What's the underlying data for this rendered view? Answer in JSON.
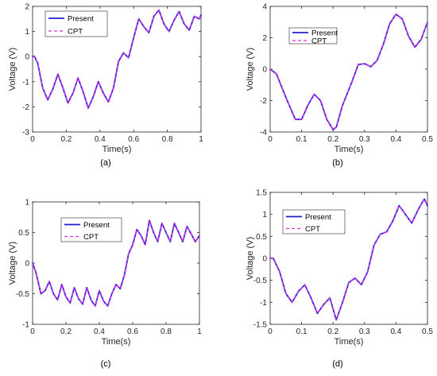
{
  "colors": {
    "present": "#1f1fd0",
    "cpt": "#e22ee2"
  },
  "chart_data": [
    {
      "type": "line",
      "panel_label": "(a)",
      "xlabel": "Time(s)",
      "ylabel": "Voltage (V)",
      "xlim": [
        0,
        1
      ],
      "ylim": [
        -3,
        2
      ],
      "xticks": [
        0,
        0.2,
        0.4,
        0.6,
        0.8,
        1
      ],
      "yticks": [
        -3,
        -2,
        -1,
        0,
        1,
        2
      ],
      "xtick_labels": [
        "0",
        "0.2",
        "0.4",
        "0.6",
        "0.8",
        "1"
      ],
      "ytick_labels": [
        "-3",
        "-2",
        "-1",
        "0",
        "1",
        "2"
      ],
      "grid": false,
      "legend": "top-left",
      "x": [
        0,
        0.01,
        0.03,
        0.06,
        0.09,
        0.12,
        0.15,
        0.18,
        0.21,
        0.24,
        0.27,
        0.3,
        0.33,
        0.36,
        0.39,
        0.42,
        0.45,
        0.48,
        0.51,
        0.54,
        0.57,
        0.6,
        0.63,
        0.66,
        0.69,
        0.72,
        0.75,
        0.78,
        0.81,
        0.84,
        0.87,
        0.9,
        0.93,
        0.96,
        0.99,
        1.0
      ],
      "series": [
        {
          "name": "Present",
          "values": [
            0,
            0.02,
            -0.25,
            -1.25,
            -1.72,
            -1.3,
            -0.7,
            -1.25,
            -1.85,
            -1.45,
            -0.85,
            -1.4,
            -2.05,
            -1.6,
            -1.0,
            -1.45,
            -1.8,
            -1.25,
            -0.2,
            0.15,
            -0.05,
            0.75,
            1.5,
            1.2,
            0.95,
            1.6,
            1.85,
            1.3,
            1.0,
            1.45,
            1.8,
            1.3,
            1.05,
            1.6,
            1.5,
            1.65
          ]
        },
        {
          "name": "CPT",
          "values": [
            0,
            0.02,
            -0.25,
            -1.25,
            -1.72,
            -1.3,
            -0.7,
            -1.25,
            -1.85,
            -1.45,
            -0.85,
            -1.4,
            -2.05,
            -1.6,
            -1.0,
            -1.45,
            -1.8,
            -1.25,
            -0.2,
            0.15,
            -0.05,
            0.75,
            1.5,
            1.2,
            0.95,
            1.6,
            1.85,
            1.3,
            1.0,
            1.45,
            1.8,
            1.3,
            1.05,
            1.6,
            1.5,
            1.65
          ]
        }
      ]
    },
    {
      "type": "line",
      "panel_label": "(b)",
      "xlabel": "Time(s)",
      "ylabel": "Voltage (V)",
      "xlim": [
        0,
        0.5
      ],
      "ylim": [
        -4,
        4
      ],
      "xticks": [
        0,
        0.1,
        0.2,
        0.3,
        0.4,
        0.5
      ],
      "yticks": [
        -4,
        -2,
        0,
        2,
        4
      ],
      "xtick_labels": [
        "0",
        "0.1",
        "0.2",
        "0.3",
        "0.4",
        "0.5"
      ],
      "ytick_labels": [
        "-4",
        "-2",
        "0",
        "2",
        "4"
      ],
      "grid": false,
      "legend": "top-left",
      "x": [
        0,
        0.02,
        0.05,
        0.08,
        0.1,
        0.12,
        0.14,
        0.16,
        0.18,
        0.2,
        0.21,
        0.23,
        0.26,
        0.28,
        0.3,
        0.32,
        0.34,
        0.36,
        0.38,
        0.4,
        0.42,
        0.44,
        0.46,
        0.48,
        0.5
      ],
      "series": [
        {
          "name": "Present",
          "values": [
            0,
            -0.3,
            -1.8,
            -3.2,
            -3.2,
            -2.3,
            -1.6,
            -2.0,
            -3.2,
            -3.85,
            -3.7,
            -2.3,
            -0.8,
            0.3,
            0.35,
            0.15,
            0.55,
            1.6,
            2.9,
            3.5,
            3.2,
            2.1,
            1.4,
            1.9,
            3.0
          ]
        },
        {
          "name": "CPT",
          "values": [
            0,
            -0.3,
            -1.8,
            -3.2,
            -3.2,
            -2.3,
            -1.6,
            -2.0,
            -3.2,
            -3.85,
            -3.7,
            -2.3,
            -0.8,
            0.3,
            0.35,
            0.15,
            0.55,
            1.6,
            2.9,
            3.5,
            3.2,
            2.1,
            1.4,
            1.9,
            3.0
          ]
        }
      ]
    },
    {
      "type": "line",
      "panel_label": "(c)",
      "xlabel": "Time(s)",
      "ylabel": "Voltage (V)",
      "xlim": [
        0,
        1
      ],
      "ylim": [
        -1,
        1
      ],
      "xticks": [
        0,
        0.2,
        0.4,
        0.6,
        0.8,
        1
      ],
      "yticks": [
        -1,
        -0.5,
        0,
        0.5,
        1
      ],
      "xtick_labels": [
        "0",
        "0.2",
        "0.4",
        "0.6",
        "0.8",
        "1"
      ],
      "ytick_labels": [
        "-1",
        "-0.5",
        "0",
        "0.5",
        "1"
      ],
      "grid": false,
      "legend": "top-right",
      "x": [
        0,
        0.02,
        0.05,
        0.075,
        0.1,
        0.125,
        0.15,
        0.175,
        0.2,
        0.225,
        0.25,
        0.275,
        0.3,
        0.325,
        0.35,
        0.375,
        0.4,
        0.425,
        0.45,
        0.475,
        0.5,
        0.525,
        0.55,
        0.575,
        0.6,
        0.625,
        0.65,
        0.675,
        0.7,
        0.725,
        0.75,
        0.775,
        0.8,
        0.825,
        0.85,
        0.875,
        0.9,
        0.925,
        0.95,
        0.975,
        1.0
      ],
      "series": [
        {
          "name": "Present",
          "values": [
            0,
            -0.15,
            -0.5,
            -0.45,
            -0.3,
            -0.5,
            -0.6,
            -0.35,
            -0.55,
            -0.65,
            -0.4,
            -0.58,
            -0.67,
            -0.4,
            -0.6,
            -0.7,
            -0.45,
            -0.62,
            -0.7,
            -0.5,
            -0.35,
            -0.42,
            -0.2,
            0.15,
            0.3,
            0.55,
            0.45,
            0.3,
            0.7,
            0.5,
            0.35,
            0.65,
            0.5,
            0.35,
            0.65,
            0.5,
            0.35,
            0.6,
            0.48,
            0.35,
            0.45
          ]
        },
        {
          "name": "CPT",
          "values": [
            0,
            -0.15,
            -0.5,
            -0.45,
            -0.3,
            -0.5,
            -0.6,
            -0.35,
            -0.55,
            -0.65,
            -0.4,
            -0.58,
            -0.67,
            -0.4,
            -0.6,
            -0.7,
            -0.45,
            -0.62,
            -0.7,
            -0.5,
            -0.35,
            -0.42,
            -0.2,
            0.15,
            0.3,
            0.55,
            0.45,
            0.3,
            0.7,
            0.5,
            0.35,
            0.65,
            0.5,
            0.35,
            0.65,
            0.5,
            0.35,
            0.6,
            0.48,
            0.35,
            0.45
          ]
        }
      ]
    },
    {
      "type": "line",
      "panel_label": "(d)",
      "xlabel": "Time(s)",
      "ylabel": "Voltage (V)",
      "xlim": [
        0,
        0.5
      ],
      "ylim": [
        -1.5,
        1.5
      ],
      "xticks": [
        0,
        0.1,
        0.2,
        0.3,
        0.4,
        0.5
      ],
      "yticks": [
        -1.5,
        -1,
        -0.5,
        0,
        0.5,
        1,
        1.5
      ],
      "xtick_labels": [
        "0",
        "0.1",
        "0.2",
        "0.3",
        "0.4",
        "0.5"
      ],
      "ytick_labels": [
        "-1.5",
        "-1",
        "-0.5",
        "0",
        "0.5",
        "1",
        "1.5"
      ],
      "grid": false,
      "legend": "top-right",
      "x": [
        0,
        0.01,
        0.03,
        0.05,
        0.07,
        0.09,
        0.11,
        0.13,
        0.15,
        0.17,
        0.19,
        0.21,
        0.23,
        0.25,
        0.27,
        0.29,
        0.31,
        0.33,
        0.35,
        0.37,
        0.39,
        0.41,
        0.43,
        0.45,
        0.47,
        0.49,
        0.5
      ],
      "series": [
        {
          "name": "Present",
          "values": [
            0,
            0,
            -0.3,
            -0.8,
            -1.0,
            -0.75,
            -0.6,
            -0.9,
            -1.25,
            -1.05,
            -0.9,
            -1.4,
            -1.0,
            -0.55,
            -0.45,
            -0.6,
            -0.3,
            0.3,
            0.55,
            0.6,
            0.85,
            1.2,
            1.0,
            0.8,
            1.1,
            1.35,
            1.2
          ]
        },
        {
          "name": "CPT",
          "values": [
            0,
            0,
            -0.3,
            -0.8,
            -1.0,
            -0.75,
            -0.6,
            -0.9,
            -1.25,
            -1.05,
            -0.9,
            -1.4,
            -1.0,
            -0.55,
            -0.45,
            -0.6,
            -0.3,
            0.3,
            0.55,
            0.6,
            0.85,
            1.2,
            1.0,
            0.8,
            1.1,
            1.35,
            1.2
          ]
        }
      ]
    }
  ]
}
